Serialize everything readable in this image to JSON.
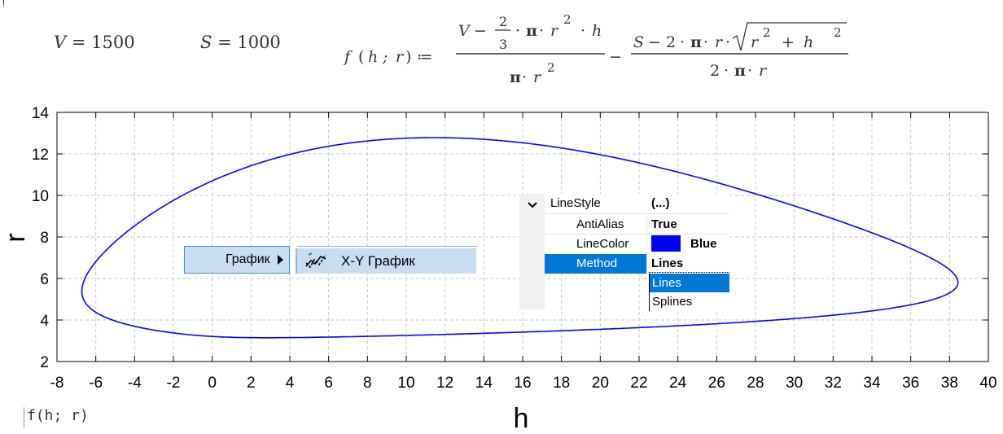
{
  "worksheet": {
    "top_mark": "!",
    "definitions": [
      {
        "name": "V",
        "value": "1500"
      },
      {
        "name": "S",
        "value": "1000"
      }
    ],
    "function": {
      "lhs": "f(h ; r)",
      "assign": ":=",
      "term1_num": "V − (2/3)·π·r²·h",
      "term1_den": "π·r²",
      "term2_num": "S − 2·π·r·√(r² + h²)",
      "term2_den": "2·π·r"
    },
    "region_label": "f(h; r)"
  },
  "colors": {
    "curve": "#0000ff",
    "grid": "#c8c8c8",
    "menu_highlight": "#c8def3",
    "selection": "#0078d7"
  },
  "chart_data": {
    "type": "implicit-contour",
    "expression": "f(h; r)",
    "contour_level": 0,
    "xlabel": "h",
    "ylabel": "r",
    "xlim": [
      -8,
      40
    ],
    "ylim": [
      2,
      14
    ],
    "xticks": [
      "-8",
      "-6",
      "-4",
      "-2",
      "0",
      "2",
      "4",
      "6",
      "8",
      "10",
      "12",
      "14",
      "16",
      "18",
      "20",
      "22",
      "24",
      "26",
      "28",
      "30",
      "32",
      "34",
      "36",
      "38",
      "40"
    ],
    "yticks": [
      "2",
      "4",
      "6",
      "8",
      "10",
      "12",
      "14"
    ],
    "grid": true,
    "line_color": "#0000ff",
    "approx_extents": {
      "h_min": -6.7,
      "h_max": 38.4,
      "r_min": 3.1,
      "r_max": 12.8
    }
  },
  "context_menu": {
    "item": "График",
    "submenu_item": "X-Y График",
    "submenu_icon": "xy-plot-icon"
  },
  "property_grid": {
    "group": {
      "name": "LineStyle",
      "value": "(...)",
      "icon": "chevron-down-icon"
    },
    "rows": [
      {
        "name": "AntiAlias",
        "value": "True"
      },
      {
        "name": "LineColor",
        "value": "Blue"
      },
      {
        "name": "Method",
        "value": "Lines"
      }
    ],
    "dropdown_options": [
      "Lines",
      "Splines"
    ],
    "dropdown_selected": "Lines"
  }
}
